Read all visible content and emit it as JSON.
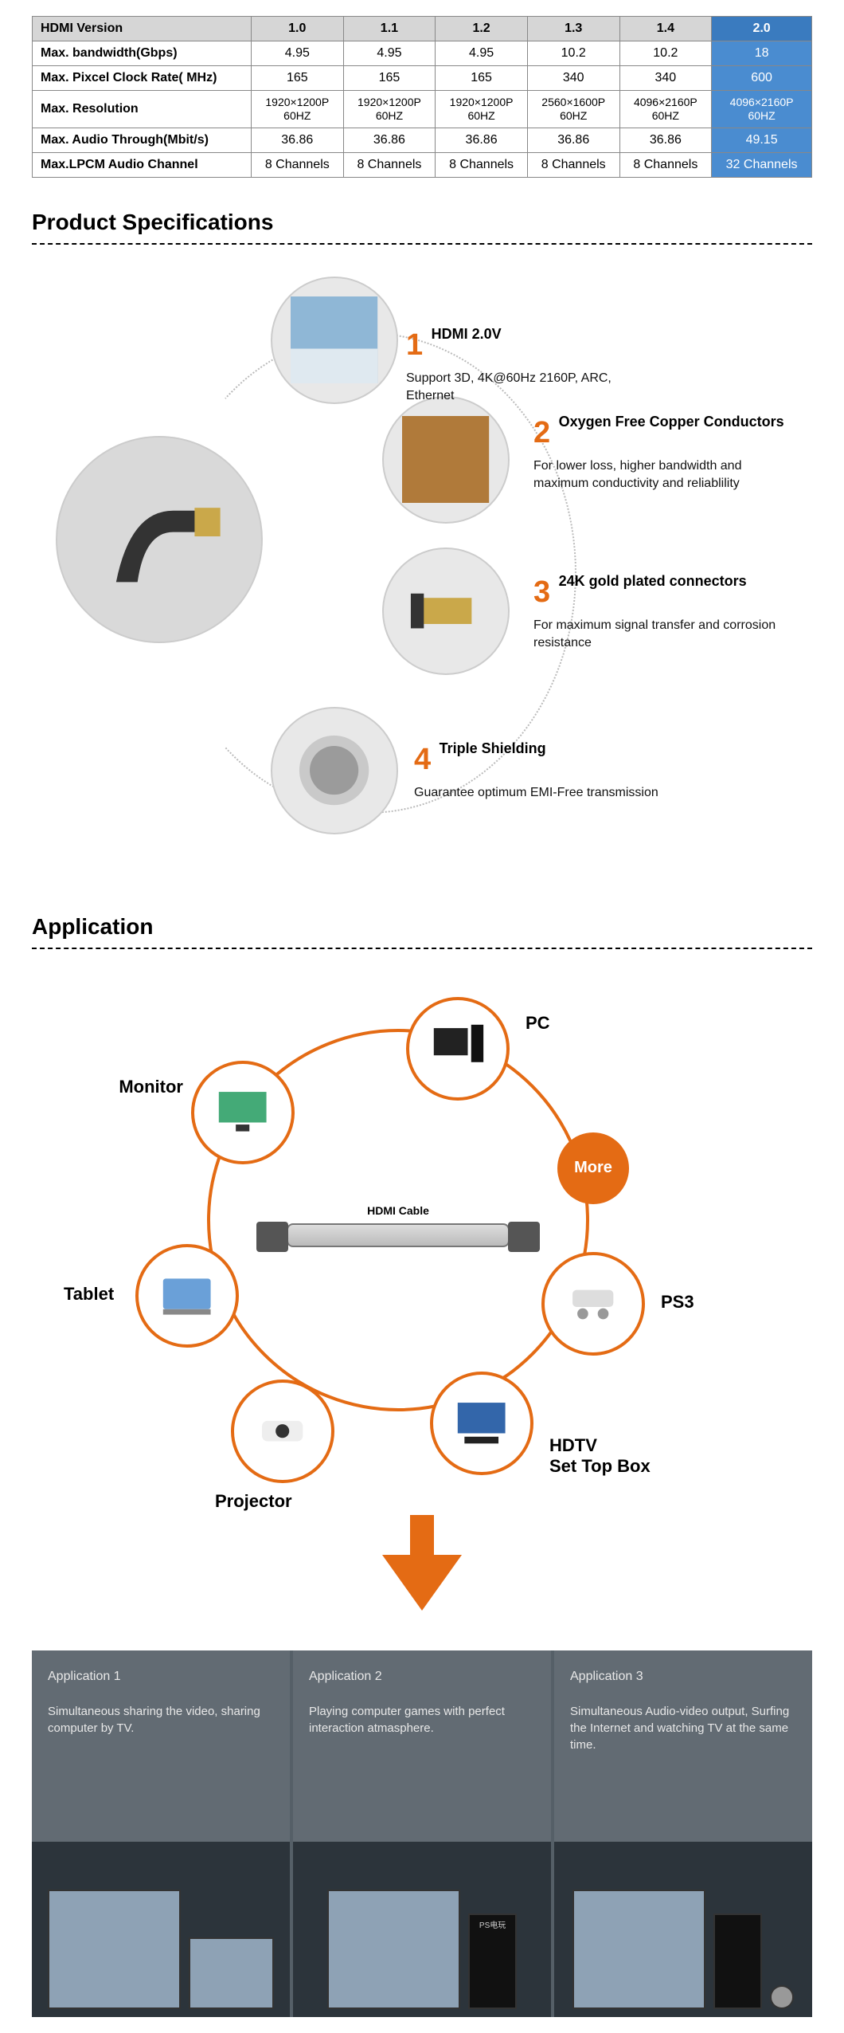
{
  "colors": {
    "accent_orange": "#e46b14",
    "table_header_bg": "#d6d6d6",
    "table_highlight_header": "#3a7bbf",
    "table_highlight_cell": "#4a8cd0",
    "card_bg": "#626b73",
    "text": "#000000"
  },
  "comparison_table": {
    "type": "table",
    "columns": [
      "HDMI Version",
      "1.0",
      "1.1",
      "1.2",
      "1.3",
      "1.4",
      "2.0"
    ],
    "highlight_col_index": 6,
    "rows": [
      {
        "label": "Max. bandwidth(Gbps)",
        "cells": [
          "4.95",
          "4.95",
          "4.95",
          "10.2",
          "10.2",
          "18"
        ]
      },
      {
        "label": "Max. Pixcel Clock Rate( MHz)",
        "cells": [
          "165",
          "165",
          "165",
          "340",
          "340",
          "600"
        ]
      },
      {
        "label": "Max. Resolution",
        "cells": [
          "1920×1200P 60HZ",
          "1920×1200P 60HZ",
          "1920×1200P 60HZ",
          "2560×1600P 60HZ",
          "4096×2160P 60HZ",
          "4096×2160P 60HZ"
        ]
      },
      {
        "label": "Max. Audio Through(Mbit/s)",
        "cells": [
          "36.86",
          "36.86",
          "36.86",
          "36.86",
          "36.86",
          "49.15"
        ]
      },
      {
        "label": "Max.LPCM Audio Channel",
        "cells": [
          "8 Channels",
          "8 Channels",
          "8 Channels",
          "8 Channels",
          "8 Channels",
          "32 Channels"
        ]
      }
    ]
  },
  "section_specs_title": "Product Specifications",
  "spec_features": [
    {
      "num": "1",
      "title": "HDMI 2.0V",
      "desc": "Support 3D, 4K@60Hz  2160P, ARC, Ethernet"
    },
    {
      "num": "2",
      "title": "Oxygen Free Copper Conductors",
      "desc": "For lower loss, higher bandwidth and maximum conductivity and reliablility"
    },
    {
      "num": "3",
      "title": "24K gold plated connectors",
      "desc": "For maximum signal transfer and corrosion resistance"
    },
    {
      "num": "4",
      "title": "Triple Shielding",
      "desc": "Guarantee optimum EMI-Free transmission"
    }
  ],
  "section_app_title": "Application",
  "app_nodes": {
    "center_label": "HDMI Cable",
    "pc": "PC",
    "monitor": "Monitor",
    "more": "More",
    "tablet": "Tablet",
    "ps3": "PS3",
    "projector": "Projector",
    "hdtv_line1": "HDTV",
    "hdtv_line2": "Set Top Box"
  },
  "app_cards": [
    {
      "heading": "Application 1",
      "desc": "Simultaneous sharing the video, sharing computer by TV."
    },
    {
      "heading": "Application 2",
      "desc": "Playing computer games with perfect interaction atmasphere."
    },
    {
      "heading": "Application 3",
      "desc": "Simultaneous Audio-video output, Surfing the Internet and watching TV at the same time."
    }
  ],
  "ps_label": "PS电玩"
}
